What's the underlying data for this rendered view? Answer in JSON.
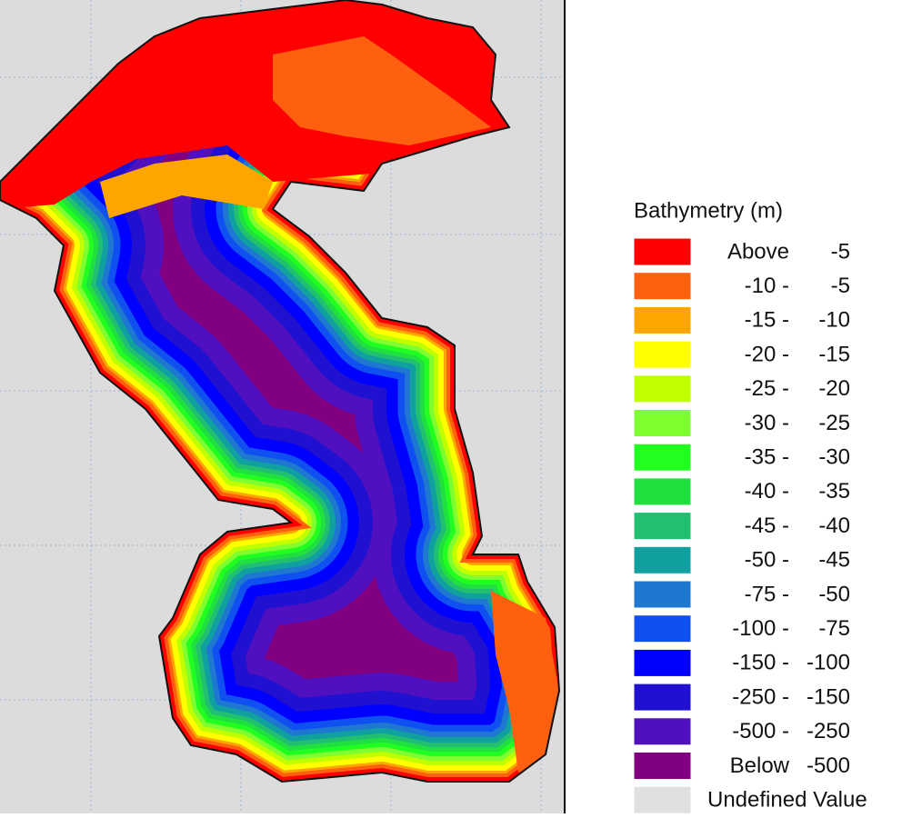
{
  "legend": {
    "title": "Bathymetry (m)",
    "items": [
      {
        "color": "#ff0000",
        "left": "Above",
        "right": "-5"
      },
      {
        "color": "#ff6010",
        "left": "-10 -",
        "right": "-5"
      },
      {
        "color": "#ffa500",
        "left": "-15 -",
        "right": "-10"
      },
      {
        "color": "#ffff00",
        "left": "-20 -",
        "right": "-15"
      },
      {
        "color": "#c0ff00",
        "left": "-25 -",
        "right": "-20"
      },
      {
        "color": "#80ff30",
        "left": "-30 -",
        "right": "-25"
      },
      {
        "color": "#20ff20",
        "left": "-35 -",
        "right": "-30"
      },
      {
        "color": "#20e040",
        "left": "-40 -",
        "right": "-35"
      },
      {
        "color": "#20c070",
        "left": "-45 -",
        "right": "-40"
      },
      {
        "color": "#10a0a0",
        "left": "-50 -",
        "right": "-45"
      },
      {
        "color": "#1e78d0",
        "left": "-75 -",
        "right": "-50"
      },
      {
        "color": "#1050f0",
        "left": "-100 -",
        "right": "-75"
      },
      {
        "color": "#0000ff",
        "left": "-150 -",
        "right": "-100"
      },
      {
        "color": "#2010d0",
        "left": "-250 -",
        "right": "-150"
      },
      {
        "color": "#5010c0",
        "left": "-500 -",
        "right": "-250"
      },
      {
        "color": "#800080",
        "left": "Below",
        "right": "-500"
      },
      {
        "color": "#e0e0e0",
        "left": "Undefined Value"
      }
    ]
  }
}
